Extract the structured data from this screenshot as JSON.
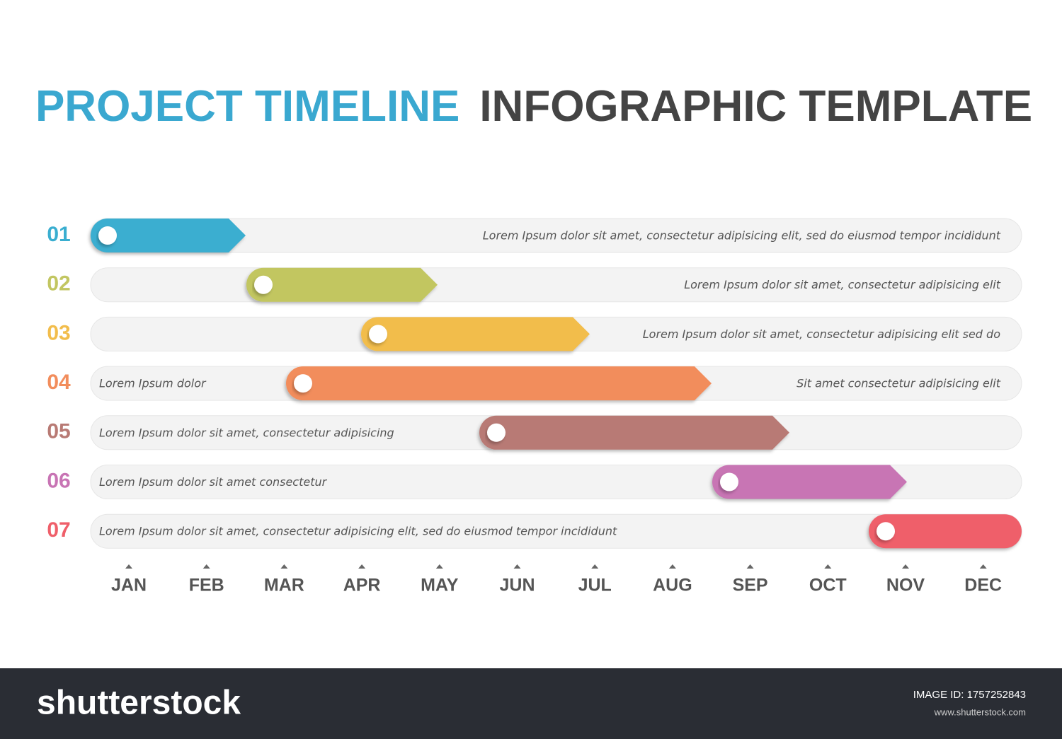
{
  "header": {
    "title_highlight": "PROJECT TIMELINE",
    "title_rest": "INFOGRAPHIC TEMPLATE"
  },
  "rows": [
    {
      "number": "01",
      "right": "Lorem Ipsum dolor sit amet, consectetur adipisicing elit, sed do eiusmod tempor incididunt"
    },
    {
      "number": "02",
      "right": "Lorem Ipsum dolor sit amet, consectetur adipisicing elit"
    },
    {
      "number": "03",
      "right": "Lorem Ipsum dolor sit amet, consectetur adipisicing elit sed do"
    },
    {
      "number": "04",
      "left": "Lorem Ipsum dolor",
      "right": "Sit amet consectetur adipisicing elit"
    },
    {
      "number": "05",
      "left": "Lorem Ipsum dolor sit amet, consectetur adipisicing"
    },
    {
      "number": "06",
      "left": "Lorem Ipsum dolor sit amet consectetur"
    },
    {
      "number": "07",
      "left": "Lorem Ipsum dolor sit amet, consectetur adipisicing elit, sed do eiusmod tempor incididunt"
    }
  ],
  "months": [
    "JAN",
    "FEB",
    "MAR",
    "APR",
    "MAY",
    "JUN",
    "JUL",
    "AUG",
    "SEP",
    "OCT",
    "NOV",
    "DEC"
  ],
  "footer": {
    "logo": "shutterstock",
    "image_id": "IMAGE ID: 1757252843",
    "website": "www.shutterstock.com"
  }
}
